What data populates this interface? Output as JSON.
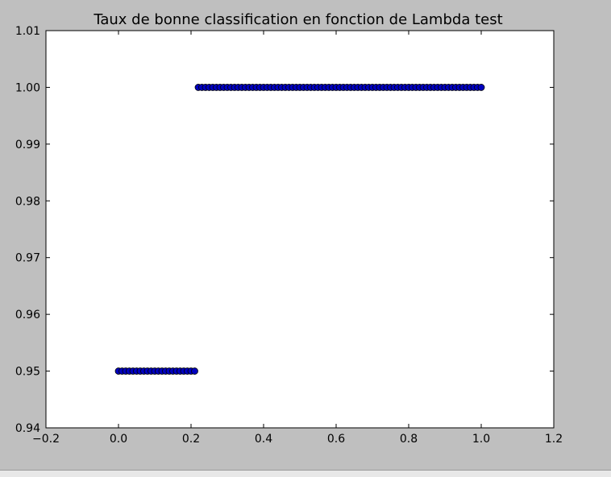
{
  "chart_data": {
    "type": "scatter",
    "title": "Taux de bonne classification en fonction de Lambda test",
    "xlabel": "",
    "ylabel": "",
    "xlim": [
      -0.2,
      1.2
    ],
    "ylim": [
      0.94,
      1.01
    ],
    "xticks": [
      -0.2,
      0.0,
      0.2,
      0.4,
      0.6,
      0.8,
      1.0,
      1.2
    ],
    "xtick_labels": [
      "−0.2",
      "0.0",
      "0.2",
      "0.4",
      "0.6",
      "0.8",
      "1.0",
      "1.2"
    ],
    "yticks": [
      0.94,
      0.95,
      0.96,
      0.97,
      0.98,
      0.99,
      1.0,
      1.01
    ],
    "ytick_labels": [
      "0.94",
      "0.95",
      "0.96",
      "0.97",
      "0.98",
      "0.99",
      "1.00",
      "1.01"
    ],
    "grid": false,
    "marker_color": "#0000bf",
    "series": [
      {
        "x": [
          0.0,
          0.01,
          0.02,
          0.03,
          0.04,
          0.05,
          0.06,
          0.07,
          0.08,
          0.09,
          0.1,
          0.11,
          0.12,
          0.13,
          0.14,
          0.15,
          0.16,
          0.17,
          0.18,
          0.19,
          0.2,
          0.21,
          0.22,
          0.23,
          0.24,
          0.25,
          0.26,
          0.27,
          0.28,
          0.29,
          0.3,
          0.31,
          0.32,
          0.33,
          0.34,
          0.35,
          0.36,
          0.37,
          0.38,
          0.39,
          0.4,
          0.41,
          0.42,
          0.43,
          0.44,
          0.45,
          0.46,
          0.47,
          0.48,
          0.49,
          0.5,
          0.51,
          0.52,
          0.53,
          0.54,
          0.55,
          0.56,
          0.57,
          0.58,
          0.59,
          0.6,
          0.61,
          0.62,
          0.63,
          0.64,
          0.65,
          0.66,
          0.67,
          0.68,
          0.69,
          0.7,
          0.71,
          0.72,
          0.73,
          0.74,
          0.75,
          0.76,
          0.77,
          0.78,
          0.79,
          0.8,
          0.81,
          0.82,
          0.83,
          0.84,
          0.85,
          0.86,
          0.87,
          0.88,
          0.89,
          0.9,
          0.91,
          0.92,
          0.93,
          0.94,
          0.95,
          0.96,
          0.97,
          0.98,
          0.99,
          1.0
        ],
        "y": [
          0.95,
          0.95,
          0.95,
          0.95,
          0.95,
          0.95,
          0.95,
          0.95,
          0.95,
          0.95,
          0.95,
          0.95,
          0.95,
          0.95,
          0.95,
          0.95,
          0.95,
          0.95,
          0.95,
          0.95,
          0.95,
          0.95,
          1.0,
          1.0,
          1.0,
          1.0,
          1.0,
          1.0,
          1.0,
          1.0,
          1.0,
          1.0,
          1.0,
          1.0,
          1.0,
          1.0,
          1.0,
          1.0,
          1.0,
          1.0,
          1.0,
          1.0,
          1.0,
          1.0,
          1.0,
          1.0,
          1.0,
          1.0,
          1.0,
          1.0,
          1.0,
          1.0,
          1.0,
          1.0,
          1.0,
          1.0,
          1.0,
          1.0,
          1.0,
          1.0,
          1.0,
          1.0,
          1.0,
          1.0,
          1.0,
          1.0,
          1.0,
          1.0,
          1.0,
          1.0,
          1.0,
          1.0,
          1.0,
          1.0,
          1.0,
          1.0,
          1.0,
          1.0,
          1.0,
          1.0,
          1.0,
          1.0,
          1.0,
          1.0,
          1.0,
          1.0,
          1.0,
          1.0,
          1.0,
          1.0,
          1.0,
          1.0,
          1.0,
          1.0,
          1.0,
          1.0,
          1.0,
          1.0,
          1.0,
          1.0,
          1.0
        ]
      }
    ]
  }
}
